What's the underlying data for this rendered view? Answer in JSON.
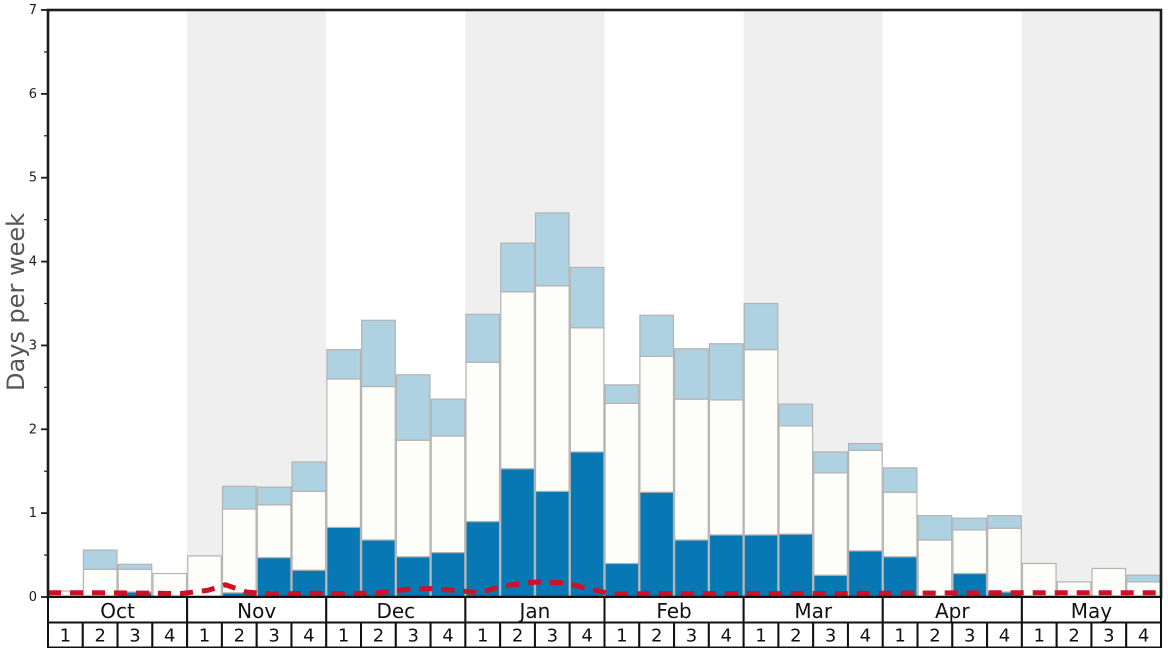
{
  "chart_data": {
    "type": "bar",
    "stacked": true,
    "title": "",
    "ylabel": "Days per week",
    "ylim": [
      0,
      7
    ],
    "yticks": [
      0,
      1,
      2,
      3,
      4,
      5,
      6,
      7
    ],
    "minor_tick_interval": 0.5,
    "grid": false,
    "legend": "none",
    "months": [
      "Oct",
      "Nov",
      "Dec",
      "Jan",
      "Feb",
      "Mar",
      "Apr",
      "May"
    ],
    "weeks_per_month": 4,
    "week_labels": [
      "1",
      "2",
      "3",
      "4"
    ],
    "series": [
      {
        "name": "dark_blue_days",
        "color": "#0878b4",
        "values": [
          0,
          0,
          0.06,
          0,
          0,
          0.05,
          0.47,
          0.32,
          0.83,
          0.68,
          0.48,
          0.53,
          0.9,
          1.53,
          1.26,
          1.73,
          0.4,
          1.25,
          0.68,
          0.74,
          0.74,
          0.75,
          0.26,
          0.55,
          0.48,
          0,
          0.28,
          0.06,
          0,
          0,
          0,
          0
        ]
      },
      {
        "name": "white_days",
        "color": "#fdfefa",
        "values": [
          0.07,
          0.33,
          0.27,
          0.28,
          0.49,
          1.0,
          0.63,
          0.94,
          1.77,
          1.83,
          1.39,
          1.39,
          1.9,
          2.11,
          2.45,
          1.48,
          1.91,
          1.62,
          1.68,
          1.61,
          2.21,
          1.29,
          1.22,
          1.2,
          0.77,
          0.68,
          0.52,
          0.76,
          0.4,
          0.18,
          0.34,
          0.18
        ]
      },
      {
        "name": "light_blue_days",
        "color": "#aed2e1",
        "values": [
          0,
          0.23,
          0.06,
          0,
          0,
          0.27,
          0.21,
          0.35,
          0.35,
          0.79,
          0.78,
          0.44,
          0.57,
          0.58,
          0.87,
          0.72,
          0.22,
          0.49,
          0.6,
          0.67,
          0.55,
          0.26,
          0.25,
          0.08,
          0.29,
          0.29,
          0.14,
          0.15,
          0,
          0,
          0,
          0.08
        ]
      }
    ],
    "line": {
      "name": "red_dashed_line",
      "color": "#ce1126",
      "dash": [
        13,
        9
      ],
      "width": 5,
      "points": [
        [
          0,
          0.05
        ],
        [
          1.5,
          0.05
        ],
        [
          3.0,
          0.045
        ],
        [
          3.8,
          0.04
        ],
        [
          4.6,
          0.08
        ],
        [
          5.1,
          0.145
        ],
        [
          5.7,
          0.06
        ],
        [
          6.4,
          0.035
        ],
        [
          7.5,
          0.045
        ],
        [
          8.5,
          0.04
        ],
        [
          9.5,
          0.05
        ],
        [
          10.4,
          0.095
        ],
        [
          11.0,
          0.1
        ],
        [
          11.8,
          0.075
        ],
        [
          12.4,
          0.05
        ],
        [
          13.0,
          0.125
        ],
        [
          13.6,
          0.16
        ],
        [
          14.1,
          0.18
        ],
        [
          14.8,
          0.168
        ],
        [
          15.6,
          0.095
        ],
        [
          16.2,
          0.035
        ],
        [
          17.5,
          0.04
        ],
        [
          19,
          0.04
        ],
        [
          21,
          0.04
        ],
        [
          23,
          0.042
        ],
        [
          25,
          0.048
        ],
        [
          27,
          0.05
        ],
        [
          29,
          0.05
        ],
        [
          31,
          0.05
        ],
        [
          32,
          0.05
        ]
      ]
    },
    "colors": {
      "band_shaded": "#efefef",
      "band_plain": "#ffffff",
      "bar_border": "#b3b3b3",
      "frame": "#1c1c1c",
      "tick_label": "#1c1c1c",
      "axis_title": "#555555"
    }
  }
}
